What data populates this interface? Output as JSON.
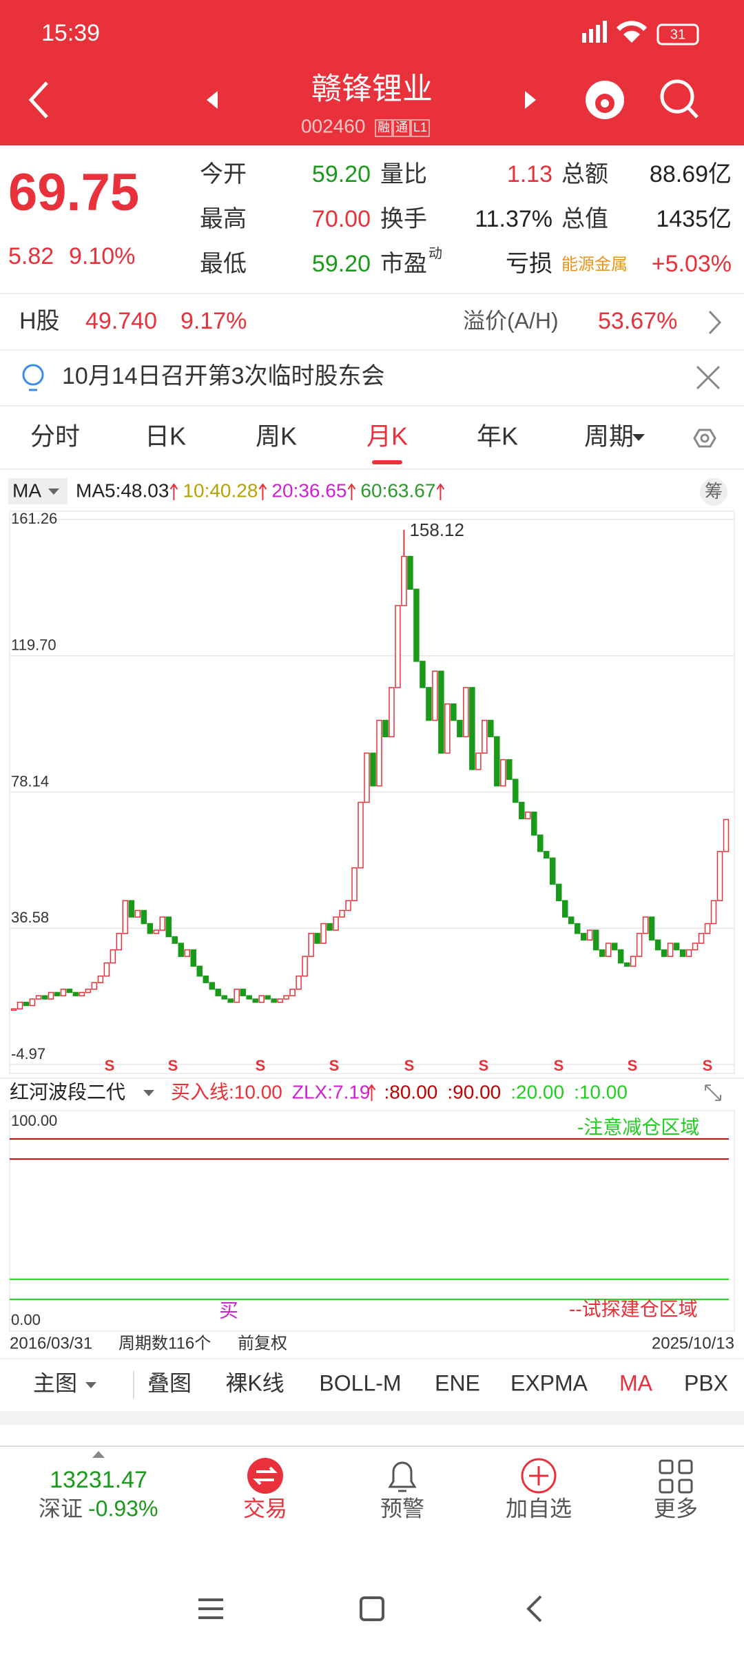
{
  "status": {
    "time": "15:39",
    "battery": "31"
  },
  "header": {
    "title": "赣锋锂业",
    "code": "002460",
    "badges": [
      "融",
      "通",
      "L1"
    ]
  },
  "quote": {
    "price": "69.75",
    "change": "5.82",
    "pct": "9.10%",
    "rows": [
      [
        {
          "label": "今开",
          "value": "59.20",
          "color": "#1a9a1a"
        },
        {
          "label": "量比",
          "value": "1.13",
          "color": "#e8313a"
        },
        {
          "label": "总额",
          "value": "88.69亿",
          "color": "#222222"
        }
      ],
      [
        {
          "label": "最高",
          "value": "70.00",
          "color": "#e8313a"
        },
        {
          "label": "换手",
          "value": "11.37%",
          "color": "#222222"
        },
        {
          "label": "总值",
          "value": "1435亿",
          "color": "#222222"
        }
      ],
      [
        {
          "label": "最低",
          "value": "59.20",
          "color": "#1a9a1a"
        },
        {
          "label": "市盈",
          "sup": "动",
          "value": "亏损",
          "color": "#222222"
        },
        {
          "label": "能源金属",
          "value": "+5.03%",
          "color": "#e8313a"
        }
      ]
    ]
  },
  "hshare": {
    "label": "H股",
    "price": "49.740",
    "pct": "9.17%",
    "premium_label": "溢价(A/H)",
    "premium": "53.67%"
  },
  "notice": "10月14日召开第3次临时股东会",
  "tabs": [
    "分时",
    "日K",
    "周K",
    "月K",
    "年K",
    "周期"
  ],
  "ma": {
    "label": "MA",
    "chip": "筹",
    "items": [
      {
        "text": "MA5:48.03",
        "color": "#222222"
      },
      {
        "text": "10:40.28",
        "color": "#b5a300"
      },
      {
        "text": "20:36.65",
        "color": "#d020d0"
      },
      {
        "text": "60:63.67",
        "color": "#2a9a2a"
      }
    ]
  },
  "kline": {
    "ylim": [
      -4.97,
      161.26
    ],
    "yticks": [
      -4.97,
      36.58,
      78.14,
      {
        "value": 119.7,
        "label": "119.70"
      },
      161.26
    ],
    "peak": 158.12,
    "closes": [
      12,
      14,
      13,
      15,
      16,
      15,
      17,
      16,
      18,
      17,
      16,
      17,
      18,
      20,
      22,
      26,
      30,
      35,
      45,
      40,
      42,
      38,
      35,
      36,
      40,
      34,
      32,
      28,
      30,
      25,
      22,
      20,
      18,
      16,
      15,
      14,
      18,
      16,
      15,
      14,
      16,
      15,
      14,
      15,
      16,
      18,
      22,
      28,
      35,
      32,
      38,
      36,
      40,
      42,
      45,
      55,
      75,
      90,
      80,
      100,
      95,
      110,
      135,
      150,
      140,
      118,
      110,
      100,
      115,
      90,
      105,
      100,
      95,
      110,
      85,
      90,
      100,
      95,
      80,
      88,
      82,
      75,
      70,
      72,
      65,
      60,
      58,
      50,
      45,
      40,
      38,
      35,
      33,
      36,
      30,
      28,
      32,
      30,
      26,
      25,
      28,
      35,
      40,
      33,
      30,
      28,
      32,
      30,
      28,
      30,
      32,
      35,
      38,
      45,
      60,
      69.75
    ],
    "signals": [
      "S",
      "S",
      "S",
      "S",
      "S",
      "S",
      "S",
      "S",
      "S"
    ]
  },
  "indicator": {
    "name": "红河波段二代",
    "ylim": [
      0,
      100
    ],
    "yticks": [
      {
        "value": 100,
        "label": "100.00"
      },
      {
        "value": 0,
        "label": "0.00"
      }
    ],
    "items": [
      {
        "text": "买入线:10.00",
        "color": "#e8313a"
      },
      {
        "text": "ZLX:7.19",
        "color": "#d020d0"
      }
    ],
    "levels": {
      "values": [
        80,
        90,
        20,
        10
      ],
      "value_labels": [
        ":80.00",
        ":90.00",
        ":20.00",
        ":10.00"
      ],
      "colors": [
        "#c00000",
        "#c00000",
        "#22cc22",
        "#22cc22"
      ]
    },
    "note_top": "-注意减仓区域",
    "note_bottom": "--试探建仓区域",
    "buy": "买"
  },
  "date_row": {
    "start": "2016/03/31",
    "count": "周期数116个",
    "adj": "前复权",
    "end": "2025/10/13"
  },
  "subtabs": [
    "主图",
    "叠图",
    "裸K线",
    "BOLL-M",
    "ENE",
    "EXPMA",
    "MA",
    "PBX"
  ],
  "bottom": {
    "index_value": "13231.47",
    "index_name": "深证",
    "index_change": "-0.93%",
    "nav": [
      "交易",
      "预警",
      "加自选",
      "更多"
    ]
  }
}
